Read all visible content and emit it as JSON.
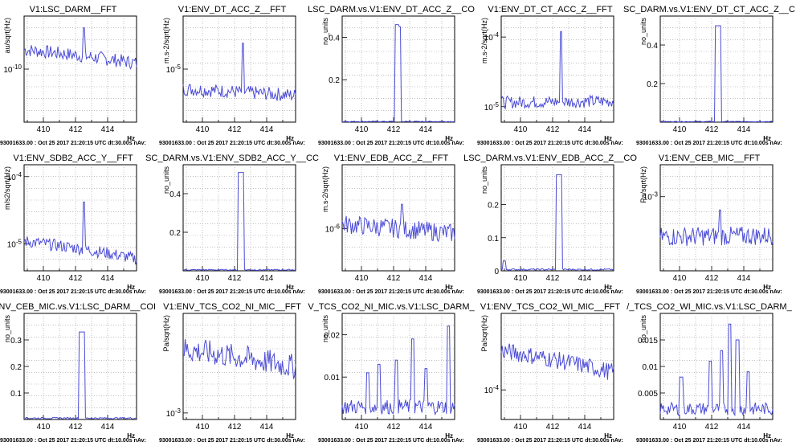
{
  "chart_data": [
    {
      "type": "line",
      "title": "V1:LSC_DARM__FFT",
      "ylabel": "au/sqrt(Hz)",
      "xlabel": "Hz",
      "log_y": true,
      "xlim": [
        408.8,
        415.8
      ],
      "ylim": [
        2e-11,
        5e-10
      ],
      "x_ticks": [
        "410",
        "412",
        "414"
      ],
      "y_ticks": [
        {
          "v": 1e-10,
          "label": "10^-10"
        }
      ],
      "baseline_start": 1.8e-10,
      "baseline_end": 1.2e-10,
      "peaks": [
        {
          "x": 412.5,
          "y": 3.5e-10
        }
      ],
      "footer": "93001633.00 : Oct 25 2017 21:20:15 UTC dt:30.00s nAv:"
    },
    {
      "type": "line",
      "title": "V1:ENV_DT_ACC_Z__FFT",
      "ylabel": "m.s-2/sqrt(Hz)",
      "xlabel": "Hz",
      "log_y": true,
      "xlim": [
        408.8,
        415.8
      ],
      "ylim": [
        2e-06,
        5e-05
      ],
      "x_ticks": [
        "410",
        "412",
        "414"
      ],
      "y_ticks": [
        {
          "v": 1e-05,
          "label": "10^-5"
        }
      ],
      "baseline_start": 5.5e-06,
      "baseline_end": 4.5e-06,
      "peaks": [
        {
          "x": 412.5,
          "y": 2.2e-05
        }
      ],
      "footer": "93001633.00 : Oct 25 2017 21:20:15 UTC dt:30.00s nAv:"
    },
    {
      "type": "line",
      "title": "LSC_DARM.vs.V1:ENV_DT_ACC_Z__CO",
      "ylabel": "no_units",
      "xlabel": "Hz",
      "log_y": false,
      "xlim": [
        408.8,
        415.8
      ],
      "ylim": [
        0,
        0.5
      ],
      "x_ticks": [
        "410",
        "412",
        "414"
      ],
      "y_ticks": [
        {
          "v": 0.2,
          "label": "0.2"
        },
        {
          "v": 0.4,
          "label": "0.4"
        }
      ],
      "baseline_start": 0.003,
      "baseline_end": 0.003,
      "peaks": [
        {
          "x": 412.2,
          "y": 0.46,
          "w": 0.12
        },
        {
          "x": 412.35,
          "y": 0.45,
          "w": 0.1
        }
      ],
      "footer": "93001633.00 : Oct 25 2017 21:20:15 UTC dt:10.00s nAv:"
    },
    {
      "type": "line",
      "title": "V1:ENV_DT_CT_ACC_Z__FFT",
      "ylabel": "m.s-2/sqrt(Hz)",
      "xlabel": "Hz",
      "log_y": true,
      "xlim": [
        408.8,
        415.8
      ],
      "ylim": [
        6e-06,
        0.0002
      ],
      "x_ticks": [
        "410",
        "412",
        "414"
      ],
      "y_ticks": [
        {
          "v": 1e-05,
          "label": "10^-5"
        },
        {
          "v": 0.0001,
          "label": "10^-4"
        }
      ],
      "baseline_start": 1.15e-05,
      "baseline_end": 1.2e-05,
      "peaks": [
        {
          "x": 412.5,
          "y": 0.00012
        }
      ],
      "footer": "93001633.00 : Oct 25 2017 21:20:15 UTC dt:30.00s nAv:"
    },
    {
      "type": "line",
      "title": "SC_DARM.vs.V1:ENV_DT_CT_ACC_Z__C",
      "ylabel": "no_units",
      "xlabel": "Hz",
      "log_y": false,
      "xlim": [
        408.8,
        415.8
      ],
      "ylim": [
        0,
        0.55
      ],
      "x_ticks": [
        "410",
        "412",
        "414"
      ],
      "y_ticks": [
        {
          "v": 0.2,
          "label": "0.2"
        },
        {
          "v": 0.4,
          "label": "0.4"
        }
      ],
      "baseline_start": 0.003,
      "baseline_end": 0.003,
      "peaks": [
        {
          "x": 412.4,
          "y": 0.5,
          "w": 0.2
        }
      ],
      "footer": "93001633.00 : Oct 25 2017 21:20:15 UTC dt:10.00s nAv:"
    },
    {
      "type": "line",
      "title": "V1:ENV_SDB2_ACC_Y__FFT",
      "ylabel": "m/s2/sqrt(Hz)",
      "xlabel": "Hz",
      "log_y": true,
      "xlim": [
        408.8,
        415.8
      ],
      "ylim": [
        4e-06,
        0.00015
      ],
      "x_ticks": [
        "410",
        "412",
        "414"
      ],
      "y_ticks": [
        {
          "v": 1e-05,
          "label": "10^-5"
        },
        {
          "v": 0.0001,
          "label": "10^-4"
        }
      ],
      "baseline_start": 1.1e-05,
      "baseline_end": 6e-06,
      "peaks": [
        {
          "x": 412.5,
          "y": 4.2e-05
        }
      ],
      "footer": "93001633.00 : Oct 25 2017 21:20:15 UTC dt:30.00s nAv:"
    },
    {
      "type": "line",
      "title": "SC_DARM.vs.V1:ENV_SDB2_ACC_Y__CC",
      "ylabel": "no_units",
      "xlabel": "Hz",
      "log_y": false,
      "xlim": [
        408.8,
        415.8
      ],
      "ylim": [
        0,
        0.55
      ],
      "x_ticks": [
        "410",
        "412",
        "414"
      ],
      "y_ticks": [
        {
          "v": 0.2,
          "label": "0.2"
        },
        {
          "v": 0.4,
          "label": "0.4"
        }
      ],
      "baseline_start": 0.005,
      "baseline_end": 0.005,
      "peaks": [
        {
          "x": 412.4,
          "y": 0.51,
          "w": 0.2
        }
      ],
      "footer": "93001633.00 : Oct 25 2017 21:20:15 UTC dt:10.00s nAv:"
    },
    {
      "type": "line",
      "title": "V1:ENV_EDB_ACC_Z__FFT",
      "ylabel": "m.s-2/sqrt(Hz)",
      "xlabel": "Hz",
      "log_y": true,
      "xlim": [
        408.8,
        415.8
      ],
      "ylim": [
        4e-07,
        4e-06
      ],
      "x_ticks": [
        "410",
        "412",
        "414"
      ],
      "y_ticks": [
        {
          "v": 1e-06,
          "label": "10^-6"
        }
      ],
      "baseline_start": 1.1e-06,
      "baseline_end": 9e-07,
      "peaks": [
        {
          "x": 412.5,
          "y": 1.7e-06
        }
      ],
      "footer": "93001633.00 : Oct 25 2017 21:20:15 UTC dt:30.00s nAv:"
    },
    {
      "type": "line",
      "title": "LSC_DARM.vs.V1:ENV_EDB_ACC_Z__CO",
      "ylabel": "no_units",
      "xlabel": "Hz",
      "log_y": false,
      "xlim": [
        408.8,
        415.8
      ],
      "ylim": [
        0,
        0.32
      ],
      "x_ticks": [
        "410",
        "412",
        "414"
      ],
      "y_ticks": [
        {
          "v": 0,
          "label": "0"
        },
        {
          "v": 0.1,
          "label": "0.1"
        },
        {
          "v": 0.2,
          "label": "0.2"
        }
      ],
      "baseline_start": 0.004,
      "baseline_end": 0.004,
      "peaks": [
        {
          "x": 412.4,
          "y": 0.29,
          "w": 0.2
        },
        {
          "x": 409.0,
          "y": 0.03,
          "w": 0.1
        }
      ],
      "footer": "93001633.00 : Oct 25 2017 21:20:15 UTC dt:10.00s nAv:"
    },
    {
      "type": "line",
      "title": "V1:ENV_CEB_MIC__FFT",
      "ylabel": "Pa/sqrt(Hz)",
      "xlabel": "Hz",
      "log_y": true,
      "xlim": [
        408.8,
        415.8
      ],
      "ylim": [
        0.0002,
        0.002
      ],
      "x_ticks": [
        "410",
        "412",
        "414"
      ],
      "y_ticks": [
        {
          "v": 0.001,
          "label": "10^-3"
        }
      ],
      "baseline_start": 0.00042,
      "baseline_end": 0.00043,
      "peaks": [
        {
          "x": 412.5,
          "y": 0.00075
        }
      ],
      "footer": "93001633.00 : Oct 25 2017 21:20:15 UTC dt:30.00s nAv:"
    },
    {
      "type": "line",
      "title": ":ENV_CEB_MIC.vs.V1:LSC_DARM__COI",
      "ylabel": "no_units",
      "xlabel": "Hz",
      "log_y": false,
      "xlim": [
        408.8,
        415.8
      ],
      "ylim": [
        0,
        0.4
      ],
      "x_ticks": [
        "410",
        "412",
        "414"
      ],
      "y_ticks": [
        {
          "v": 0.1,
          "label": "0.1"
        },
        {
          "v": 0.2,
          "label": "0.2"
        },
        {
          "v": 0.3,
          "label": "0.3"
        }
      ],
      "baseline_start": 0.005,
      "baseline_end": 0.005,
      "peaks": [
        {
          "x": 412.4,
          "y": 0.33,
          "w": 0.2
        }
      ],
      "footer": "93001633.00 : Oct 25 2017 21:20:15 UTC dt:10.00s nAv:"
    },
    {
      "type": "line",
      "title": "V1:ENV_TCS_CO2_NI_MIC__FFT",
      "ylabel": "Pa/sqrt(Hz)",
      "xlabel": "Hz",
      "log_y": true,
      "xlim": [
        408.8,
        415.8
      ],
      "ylim": [
        0.0009,
        0.005
      ],
      "x_ticks": [
        "410",
        "412",
        "414"
      ],
      "y_ticks": [
        {
          "v": 0.001,
          "label": "10^-3"
        }
      ],
      "baseline_start": 0.0028,
      "baseline_end": 0.0021,
      "peaks": [],
      "footer": "93001633.00 : Oct 25 2017 21:20:15 UTC dt:30.00s nAv:"
    },
    {
      "type": "line",
      "title": "V_TCS_CO2_NI_MIC.vs.V1:LSC_DARM_",
      "ylabel": "no_units",
      "xlabel": "Hz",
      "log_y": false,
      "xlim": [
        408.8,
        415.8
      ],
      "ylim": [
        0,
        0.025
      ],
      "x_ticks": [
        "410",
        "412",
        "414"
      ],
      "y_ticks": [
        {
          "v": 0.01,
          "label": "0.01"
        },
        {
          "v": 0.02,
          "label": "0.02"
        }
      ],
      "baseline_start": 0.003,
      "baseline_end": 0.003,
      "peaks": [
        {
          "x": 413.2,
          "y": 0.019,
          "w": 0.1
        },
        {
          "x": 412.2,
          "y": 0.014,
          "w": 0.1
        },
        {
          "x": 415.4,
          "y": 0.022,
          "w": 0.1
        },
        {
          "x": 411.1,
          "y": 0.013,
          "w": 0.1
        },
        {
          "x": 414.0,
          "y": 0.012,
          "w": 0.1
        },
        {
          "x": 410.4,
          "y": 0.011,
          "w": 0.1
        }
      ],
      "footer": "93001633.00 : Oct 25 2017 21:20:15 UTC dt:10.00s nAv:"
    },
    {
      "type": "line",
      "title": "V1:ENV_TCS_CO2_WI_MIC__FFT",
      "ylabel": "Pa/sqrt(Hz)",
      "xlabel": "Hz",
      "log_y": true,
      "xlim": [
        408.8,
        415.8
      ],
      "ylim": [
        5e-05,
        0.0006
      ],
      "x_ticks": [
        "410",
        "412",
        "414"
      ],
      "y_ticks": [
        {
          "v": 0.0001,
          "label": "10^-4"
        }
      ],
      "baseline_start": 0.00025,
      "baseline_end": 0.00015,
      "peaks": [],
      "footer": "93001633.00 : Oct 25 2017 21:20:15 UTC dt:30.00s nAv:"
    },
    {
      "type": "line",
      "title": "/_TCS_CO2_WI_MIC.vs.V1:LSC_DARM_",
      "ylabel": "no_units",
      "xlabel": "Hz",
      "log_y": false,
      "xlim": [
        408.8,
        415.8
      ],
      "ylim": [
        0,
        0.02
      ],
      "x_ticks": [
        "410",
        "412",
        "414"
      ],
      "y_ticks": [
        {
          "v": 0.005,
          "label": "0.005"
        },
        {
          "v": 0.01,
          "label": "0.01"
        },
        {
          "v": 0.015,
          "label": "0.015"
        }
      ],
      "baseline_start": 0.002,
      "baseline_end": 0.002,
      "peaks": [
        {
          "x": 413.1,
          "y": 0.018,
          "w": 0.1
        },
        {
          "x": 412.6,
          "y": 0.013,
          "w": 0.1
        },
        {
          "x": 413.6,
          "y": 0.015,
          "w": 0.1
        },
        {
          "x": 411.9,
          "y": 0.011,
          "w": 0.1
        },
        {
          "x": 414.3,
          "y": 0.009,
          "w": 0.1
        },
        {
          "x": 410.1,
          "y": 0.008,
          "w": 0.1
        }
      ],
      "footer": "93001633.00 : Oct 25 2017 21:20:15 UTC dt:10.00s nAv:"
    }
  ],
  "style": {
    "line_color": "#4b4bd6",
    "grid_color": "#9a9a9a"
  }
}
